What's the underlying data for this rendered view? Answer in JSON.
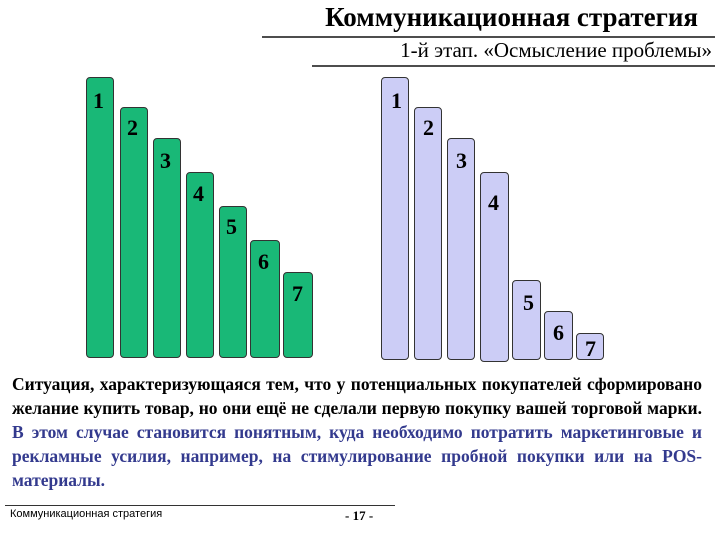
{
  "header": {
    "title": "Коммуникационная стратегия",
    "subtitle": "1-й этап. «Осмысление проблемы»"
  },
  "stairs": {
    "green_color": "#19b877",
    "violet_color": "#cccdf6",
    "green": [
      {
        "label": "1"
      },
      {
        "label": "2"
      },
      {
        "label": "3"
      },
      {
        "label": "4"
      },
      {
        "label": "5"
      },
      {
        "label": "6"
      },
      {
        "label": "7"
      }
    ],
    "violet": [
      {
        "label": "1"
      },
      {
        "label": "2"
      },
      {
        "label": "3"
      },
      {
        "label": "4"
      },
      {
        "label": "5"
      },
      {
        "label": "6"
      },
      {
        "label": "7"
      }
    ]
  },
  "body": {
    "part1": "Ситуация, характеризующаяся тем, что у потенциальных покупателей сформировано желание купить товар, но они ещё не сделали первую покупку вашей торговой марки.",
    "part2": " В этом случае становится понятным, куда необходимо потратить маркетинговые и рекламные усилия, например, на стимулирование пробной покупки или на POS-материалы.",
    "highlight_color": "#333a8e"
  },
  "footer": {
    "left": "Коммуникационная стратегия",
    "page": "- 17 -"
  }
}
